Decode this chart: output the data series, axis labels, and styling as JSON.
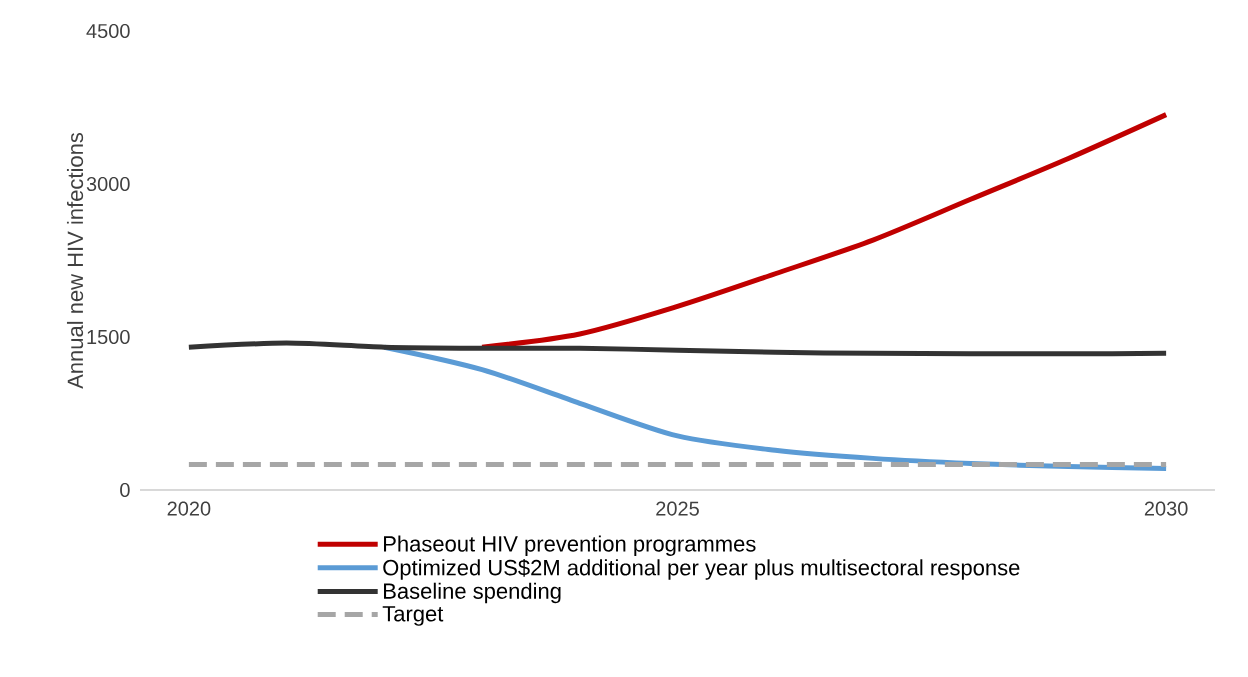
{
  "chart_data": {
    "type": "line",
    "ylabel": "Annual new HIV infections",
    "x": [
      2020,
      2021,
      2022,
      2023,
      2024,
      2025,
      2026,
      2027,
      2028,
      2029,
      2030
    ],
    "series": [
      {
        "name": "Phaseout HIV prevention programmes",
        "color": "#c00000",
        "values": [
          null,
          null,
          null,
          1400,
          1530,
          1800,
          2120,
          2450,
          2850,
          3250,
          3680
        ]
      },
      {
        "name": "Optimized US$2M additional per year plus multisectoral response",
        "color": "#5b9bd5",
        "values": [
          null,
          null,
          1400,
          1180,
          850,
          530,
          390,
          310,
          260,
          230,
          210
        ]
      },
      {
        "name": "Baseline spending",
        "color": "#333333",
        "values": [
          1400,
          1440,
          1400,
          1390,
          1390,
          1370,
          1350,
          1340,
          1335,
          1335,
          1340
        ]
      },
      {
        "name": "Target",
        "color": "#a6a6a6",
        "line_style": "dashed",
        "values": [
          250,
          250,
          250,
          250,
          250,
          250,
          250,
          250,
          250,
          250,
          250
        ]
      }
    ],
    "xlim": [
      2019.5,
      2030.5
    ],
    "xticks": [
      2020,
      2025,
      2030
    ],
    "ylim": [
      0,
      4500
    ],
    "yticks": [
      0,
      1500,
      3000,
      4500
    ],
    "legend": "bottom",
    "grid": false
  }
}
